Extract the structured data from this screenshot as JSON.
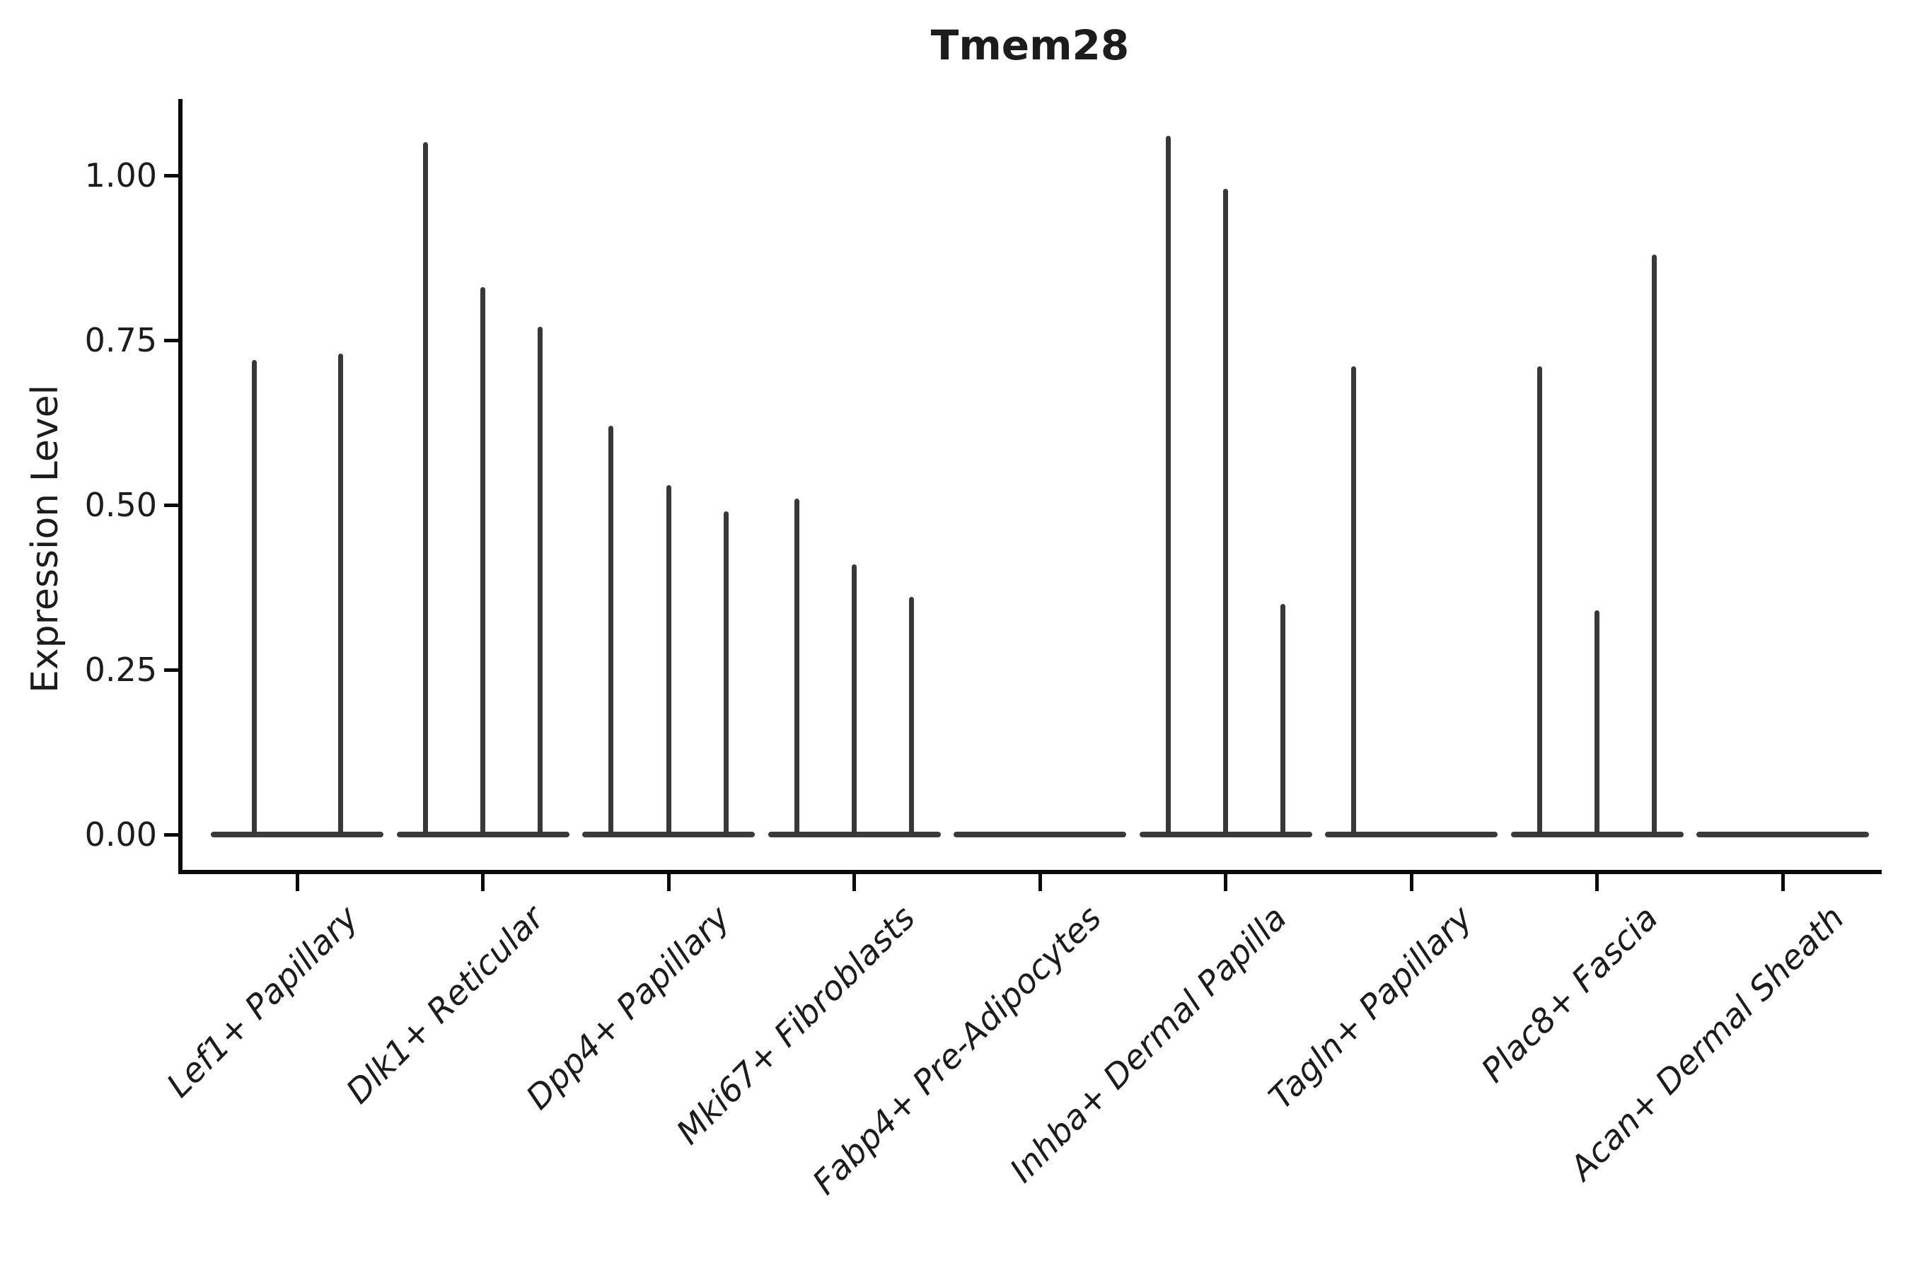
{
  "chart_data": {
    "type": "violin",
    "title": "Tmem28",
    "xlabel": "",
    "ylabel": "Expression Level",
    "ylim": [
      -0.06,
      1.12
    ],
    "grid": false,
    "legend_position": "none",
    "yticks": {
      "values": [
        1.0,
        0.75,
        0.5,
        0.25,
        0.0
      ],
      "labels": [
        "1.00",
        "0.75",
        "0.50",
        "0.25",
        "0.00"
      ]
    },
    "categories": [
      "Lef1+ Papillary",
      "Dlk1+ Reticular",
      "Dpp4+ Papillary",
      "Mki67+ Fibroblasts",
      "Fabp4+ Pre-Adipocytes",
      "Inhba+ Dermal Papilla",
      "Tagln+ Papillary",
      "Plac8+ Fascia",
      "Acan+ Dermal Sheath"
    ],
    "groups": [
      {
        "label": "Lef1+ Papillary",
        "spike_values": [
          0.72,
          0.73
        ]
      },
      {
        "label": "Dlk1+ Reticular",
        "spike_values": [
          1.05,
          0.83,
          0.77
        ]
      },
      {
        "label": "Dpp4+ Papillary",
        "spike_values": [
          0.62,
          0.53,
          0.49
        ]
      },
      {
        "label": "Mki67+ Fibroblasts",
        "spike_values": [
          0.51,
          0.41,
          0.36
        ]
      },
      {
        "label": "Fabp4+ Pre-Adipocytes",
        "spike_values": [
          0,
          0,
          0
        ]
      },
      {
        "label": "Inhba+ Dermal Papilla",
        "spike_values": [
          1.06,
          0.98,
          0.35
        ]
      },
      {
        "label": "Tagln+ Papillary",
        "spike_values": [
          0.71,
          0,
          0
        ]
      },
      {
        "label": "Plac8+ Fascia",
        "spike_values": [
          0.71,
          0.34,
          0.88
        ]
      },
      {
        "label": "Acan+ Dermal Sheath",
        "spike_values": [
          0,
          0,
          0
        ]
      }
    ],
    "notes": "Violin plot; each cluster shows thin density spikes rising from a flat zero-expression baseline"
  }
}
